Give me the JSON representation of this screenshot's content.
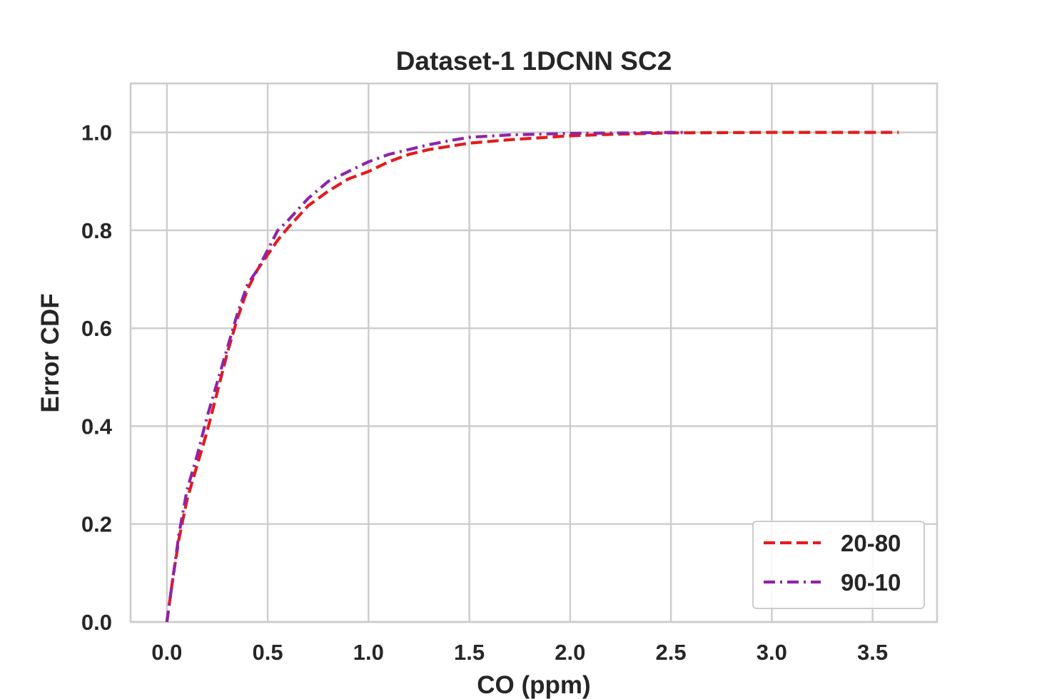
{
  "chart_data": {
    "type": "line",
    "title": "Dataset-1 1DCNN SC2",
    "xlabel": "CO (ppm)",
    "ylabel": "Error CDF",
    "xlim": [
      -0.18,
      3.82
    ],
    "ylim": [
      0.0,
      1.1
    ],
    "xticks": [
      0.0,
      0.5,
      1.0,
      1.5,
      2.0,
      2.5,
      3.0,
      3.5
    ],
    "xtick_labels": [
      "0.0",
      "0.5",
      "1.0",
      "1.5",
      "2.0",
      "2.5",
      "3.0",
      "3.5"
    ],
    "yticks": [
      0.0,
      0.2,
      0.4,
      0.6,
      0.8,
      1.0
    ],
    "ytick_labels": [
      "0.0",
      "0.2",
      "0.4",
      "0.6",
      "0.8",
      "1.0"
    ],
    "grid": true,
    "legend_position": "lower-right",
    "series": [
      {
        "name": "20-80",
        "color": "#e41a1c",
        "style": "dashed",
        "x": [
          0.0,
          0.03,
          0.06,
          0.1,
          0.15,
          0.2,
          0.25,
          0.3,
          0.35,
          0.4,
          0.45,
          0.5,
          0.55,
          0.6,
          0.7,
          0.8,
          0.9,
          1.0,
          1.1,
          1.2,
          1.3,
          1.5,
          1.7,
          2.0,
          2.2,
          2.5,
          3.0,
          3.5,
          3.63
        ],
        "y": [
          0.0,
          0.09,
          0.17,
          0.25,
          0.32,
          0.39,
          0.47,
          0.55,
          0.62,
          0.68,
          0.72,
          0.75,
          0.78,
          0.805,
          0.85,
          0.88,
          0.905,
          0.92,
          0.94,
          0.955,
          0.965,
          0.978,
          0.985,
          0.993,
          0.996,
          0.999,
          1.0,
          1.0,
          1.0
        ]
      },
      {
        "name": "90-10",
        "color": "#8e24aa",
        "style": "dashdot",
        "x": [
          0.0,
          0.03,
          0.06,
          0.1,
          0.15,
          0.2,
          0.25,
          0.3,
          0.35,
          0.4,
          0.45,
          0.5,
          0.55,
          0.6,
          0.7,
          0.8,
          0.9,
          1.0,
          1.1,
          1.2,
          1.3,
          1.4,
          1.5,
          1.7,
          2.0,
          2.3,
          2.5,
          2.57
        ],
        "y": [
          0.0,
          0.09,
          0.18,
          0.27,
          0.34,
          0.42,
          0.49,
          0.56,
          0.63,
          0.69,
          0.72,
          0.76,
          0.8,
          0.82,
          0.865,
          0.9,
          0.92,
          0.94,
          0.955,
          0.965,
          0.975,
          0.983,
          0.99,
          0.995,
          0.998,
          0.999,
          1.0,
          1.0
        ]
      }
    ]
  }
}
